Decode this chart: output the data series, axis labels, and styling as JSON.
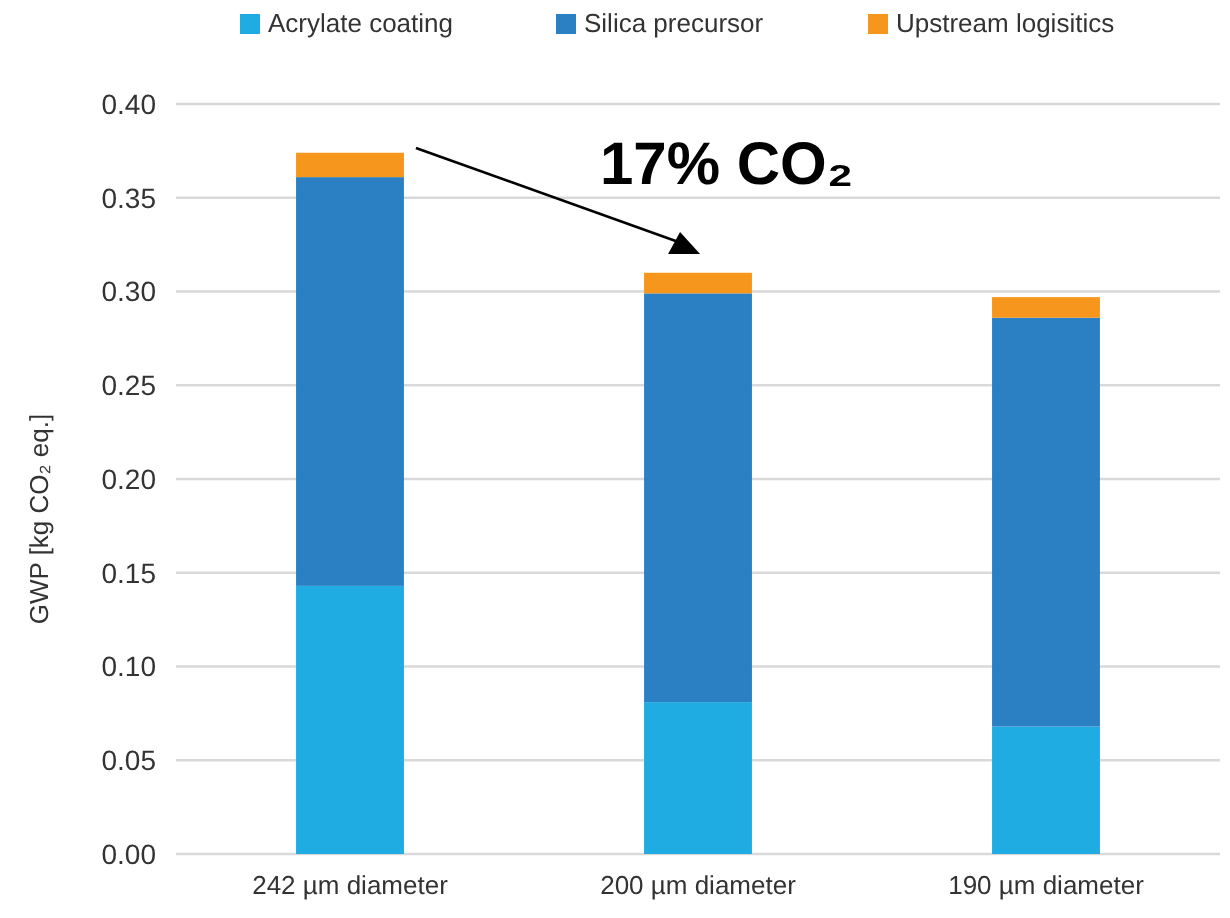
{
  "chart_data": {
    "type": "bar",
    "stacked": true,
    "ylabel": "GWP [kg CO₂ eq.]",
    "categories": [
      "242 µm diameter",
      "200 µm diameter",
      "190 µm diameter"
    ],
    "series": [
      {
        "name": "Acrylate coating",
        "color": "#1eace2",
        "values": [
          0.143,
          0.081,
          0.068
        ]
      },
      {
        "name": "Silica precursor",
        "color": "#2b80c4",
        "values": [
          0.218,
          0.218,
          0.218
        ]
      },
      {
        "name": "Upstream logisitics",
        "color": "#f7961d",
        "values": [
          0.013,
          0.011,
          0.011
        ]
      }
    ],
    "ylim": [
      0,
      0.4
    ],
    "yticks": [
      {
        "value": 0,
        "label": "0.00"
      },
      {
        "value": 0.05,
        "label": "0.05"
      },
      {
        "value": 0.1,
        "label": "0.10"
      },
      {
        "value": 0.15,
        "label": "0.15"
      },
      {
        "value": 0.2,
        "label": "0.20"
      },
      {
        "value": 0.25,
        "label": "0.25"
      },
      {
        "value": 0.3,
        "label": "0.30"
      },
      {
        "value": 0.35,
        "label": "0.35"
      },
      {
        "value": 0.4,
        "label": "0.40"
      }
    ],
    "grid": "y",
    "legend": "top",
    "annotations": [
      "17% CO₂"
    ]
  }
}
